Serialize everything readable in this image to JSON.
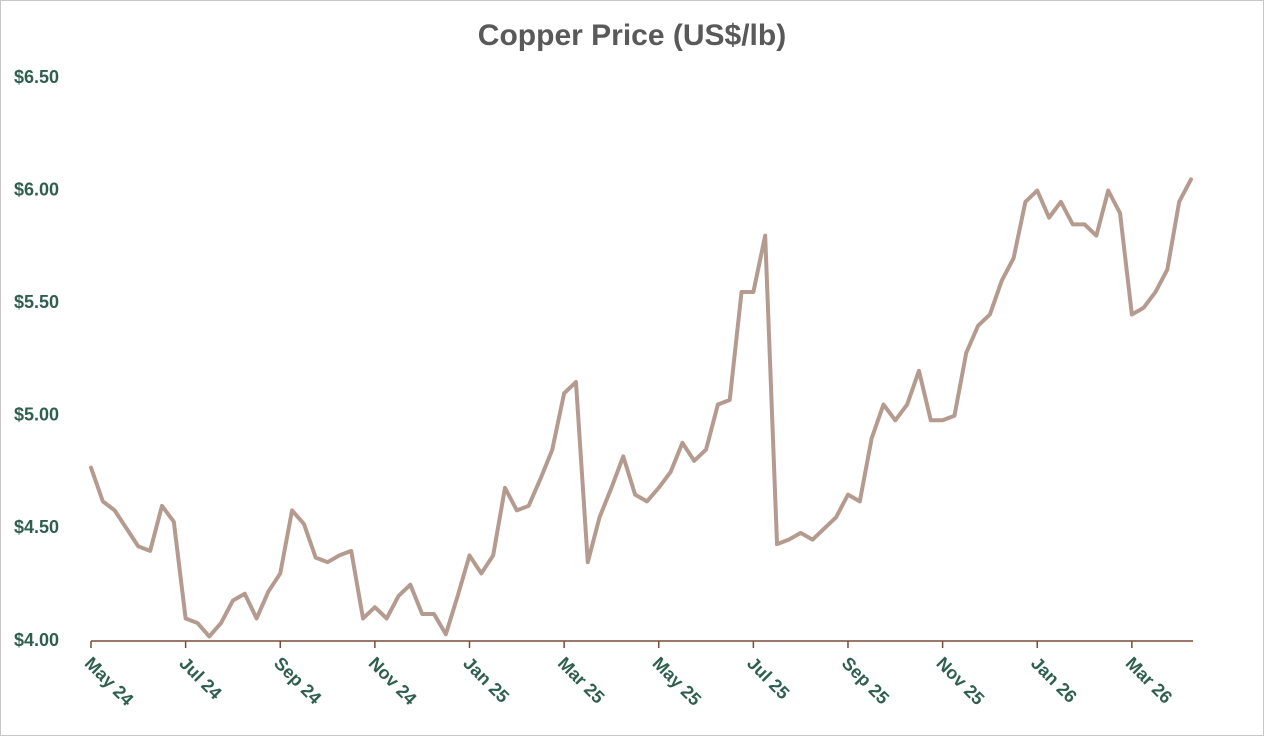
{
  "chart_data": {
    "type": "line",
    "title": "Copper Price (US$/lb)",
    "categories": [
      "May 24",
      null,
      null,
      null,
      null,
      null,
      null,
      null,
      "Jul 24",
      null,
      null,
      null,
      null,
      null,
      null,
      null,
      "Sep 24",
      null,
      null,
      null,
      null,
      null,
      null,
      null,
      "Nov 24",
      null,
      null,
      null,
      null,
      null,
      null,
      null,
      "Jan 25",
      null,
      null,
      null,
      null,
      null,
      null,
      null,
      "Mar 25",
      null,
      null,
      null,
      null,
      null,
      null,
      null,
      "May 25",
      null,
      null,
      null,
      null,
      null,
      null,
      null,
      "Jul 25",
      null,
      null,
      null,
      null,
      null,
      null,
      null,
      "Sep 25",
      null,
      null,
      null,
      null,
      null,
      null,
      null,
      "Nov 25",
      null,
      null,
      null,
      null,
      null,
      null,
      null,
      "Jan 26",
      null,
      null,
      null,
      null,
      null,
      null,
      null,
      "Mar 26",
      null,
      null,
      null,
      null,
      null
    ],
    "values": [
      4.77,
      4.62,
      4.58,
      4.5,
      4.42,
      4.4,
      4.6,
      4.53,
      4.1,
      4.08,
      4.02,
      4.08,
      4.18,
      4.21,
      4.1,
      4.22,
      4.3,
      4.58,
      4.52,
      4.37,
      4.35,
      4.38,
      4.4,
      4.1,
      4.15,
      4.1,
      4.2,
      4.25,
      4.12,
      4.12,
      4.03,
      4.2,
      4.38,
      4.3,
      4.38,
      4.68,
      4.58,
      4.6,
      4.72,
      4.85,
      5.1,
      5.15,
      4.35,
      4.55,
      4.68,
      4.82,
      4.65,
      4.62,
      4.68,
      4.75,
      4.88,
      4.8,
      4.85,
      5.05,
      5.07,
      5.55,
      5.55,
      5.8,
      4.43,
      4.45,
      4.48,
      4.45,
      4.5,
      4.55,
      4.65,
      4.62,
      4.9,
      5.05,
      4.98,
      5.05,
      5.2,
      4.98,
      4.98,
      5.0,
      5.28,
      5.4,
      5.45,
      5.6,
      5.7,
      5.95,
      6.0,
      5.88,
      5.95,
      5.85,
      5.85,
      5.8,
      6.0,
      5.9,
      5.45,
      5.48,
      5.55,
      5.65,
      5.95,
      6.05
    ],
    "color": "#b59b8f",
    "ylim": [
      4.0,
      6.5
    ],
    "yticks": [
      {
        "value": 4.0,
        "label": "$4.00"
      },
      {
        "value": 4.5,
        "label": "$4.50"
      },
      {
        "value": 5.0,
        "label": "$5.00"
      },
      {
        "value": 5.5,
        "label": "$5.50"
      },
      {
        "value": 6.0,
        "label": "$6.00"
      },
      {
        "value": 6.5,
        "label": "$6.50"
      }
    ],
    "grid": false
  }
}
